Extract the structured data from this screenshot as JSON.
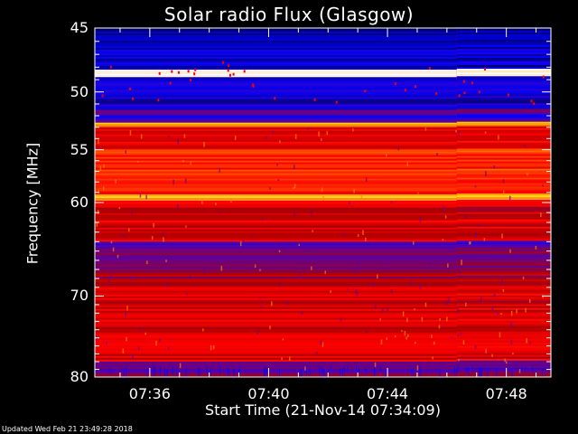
{
  "chart_data": {
    "type": "heatmap",
    "title": "Solar radio Flux (Glasgow)",
    "ylabel": "Frequency [MHz]",
    "xlabel": "Start Time (21-Nov-14 07:34:09)",
    "yticks": [
      "45",
      "50",
      "55",
      "60",
      "70",
      "80"
    ],
    "xticks": [
      "07:36",
      "07:40",
      "07:44",
      "07:48"
    ],
    "ylim": [
      45,
      80
    ],
    "y_scale": "log",
    "xlim": [
      "07:34:09",
      "07:49:30"
    ],
    "colormap": [
      "#000066",
      "#0000ff",
      "#5500aa",
      "#aa0000",
      "#ff0000",
      "#ff6600",
      "#ffcc00",
      "#ffffff"
    ],
    "bands": [
      {
        "y1": 45,
        "y2": 46.5,
        "level": 0.05
      },
      {
        "y1": 46.5,
        "y2": 48.2,
        "level": 0.1
      },
      {
        "y1": 48.2,
        "y2": 48.8,
        "level": 1.0
      },
      {
        "y1": 48.8,
        "y2": 51.5,
        "level": 0.12
      },
      {
        "y1": 51.5,
        "y2": 52.6,
        "level": 0.25
      },
      {
        "y1": 52.6,
        "y2": 53.0,
        "level": 0.8
      },
      {
        "y1": 53.0,
        "y2": 55.0,
        "level": 0.55
      },
      {
        "y1": 55.0,
        "y2": 59.2,
        "level": 0.6
      },
      {
        "y1": 59.2,
        "y2": 59.8,
        "level": 0.85
      },
      {
        "y1": 59.8,
        "y2": 64.0,
        "level": 0.5
      },
      {
        "y1": 64.0,
        "y2": 67.0,
        "level": 0.3
      },
      {
        "y1": 67.0,
        "y2": 69.0,
        "level": 0.4
      },
      {
        "y1": 69.0,
        "y2": 78.0,
        "level": 0.5
      },
      {
        "y1": 78.0,
        "y2": 80.0,
        "level": 0.35
      }
    ],
    "discontinuity_time": "07:46:20"
  },
  "footer": {
    "updated": "Updated Wed Feb 21 23:49:28 2018"
  }
}
